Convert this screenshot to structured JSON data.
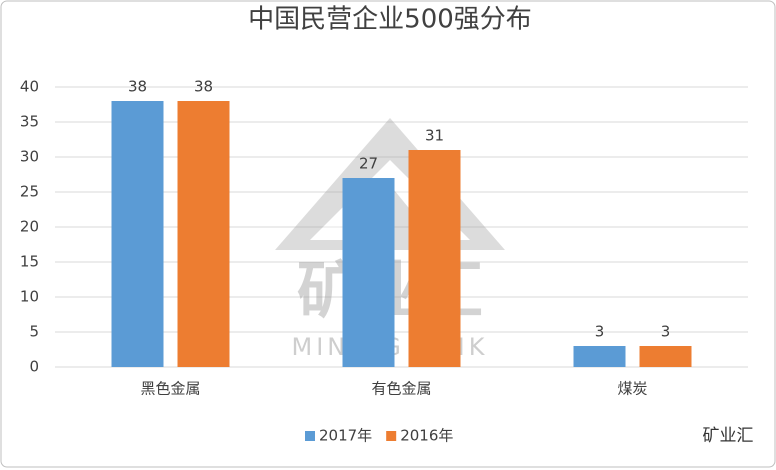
{
  "chart_data": {
    "type": "bar",
    "title": "中国民营企业500强分布",
    "categories": [
      "黑色金属",
      "有色金属",
      "煤炭"
    ],
    "series": [
      {
        "name": "2017年",
        "color": "#5b9bd5",
        "values": [
          38,
          27,
          3
        ]
      },
      {
        "name": "2016年",
        "color": "#ed7d31",
        "values": [
          38,
          31,
          3
        ]
      }
    ],
    "ylim": [
      0,
      40
    ],
    "yticks": [
      0,
      5,
      10,
      15,
      20,
      25,
      30,
      35,
      40
    ],
    "grid": true,
    "legend": "bottom",
    "watermark": [
      "矿业汇",
      "MINING SINK"
    ],
    "source": "矿业汇"
  }
}
